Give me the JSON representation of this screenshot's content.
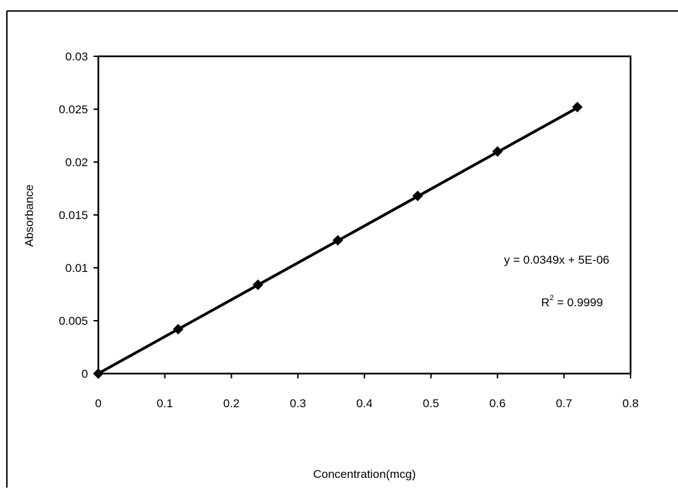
{
  "chart_data": {
    "type": "scatter",
    "title": "",
    "xlabel": "Concentration(mcg)",
    "ylabel": "Absorbance",
    "xlim": [
      0,
      0.8
    ],
    "ylim": [
      0,
      0.03
    ],
    "x_ticks": [
      "0",
      "0.1",
      "0.2",
      "0.3",
      "0.4",
      "0.5",
      "0.6",
      "0.7",
      "0.8"
    ],
    "y_ticks": [
      "0",
      "0.005",
      "0.01",
      "0.015",
      "0.02",
      "0.025",
      "0.03"
    ],
    "grid": false,
    "legend": "none",
    "series": [
      {
        "marker": "diamond",
        "x": [
          0,
          0.12,
          0.24,
          0.36,
          0.48,
          0.6,
          0.72
        ],
        "y": [
          0,
          0.0042,
          0.0084,
          0.0126,
          0.0168,
          0.021,
          0.0252
        ]
      }
    ],
    "trendline": {
      "type": "linear",
      "slope": 0.0349,
      "intercept": 5e-06,
      "x_range": [
        0,
        0.72
      ]
    },
    "annotations": {
      "equation": "y = 0.0349x + 5E-06",
      "r2_prefix": "R",
      "r2_sup": "2",
      "r2_value": " = 0.9999"
    },
    "colors": {
      "line": "#000000",
      "marker": "#000000",
      "frame": "#000000"
    }
  }
}
